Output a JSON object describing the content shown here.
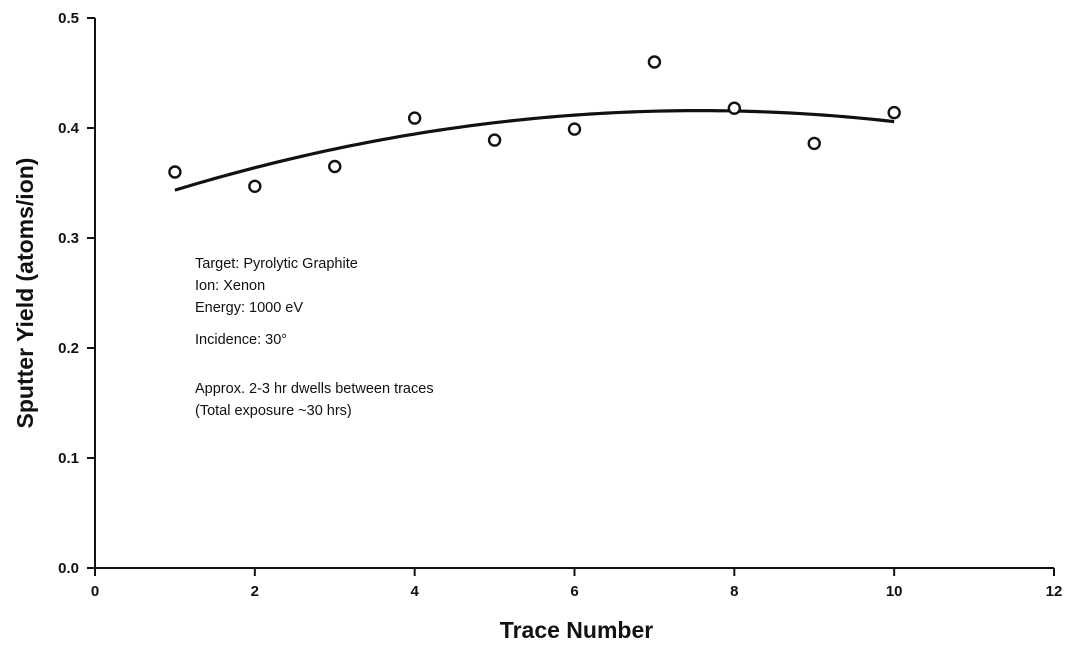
{
  "chart_data": {
    "type": "scatter",
    "xlabel": "Trace Number",
    "ylabel": "Sputter Yield (atoms/ion)",
    "xlim": [
      0,
      12
    ],
    "ylim": [
      0.0,
      0.5
    ],
    "x_ticks": [
      0,
      2,
      4,
      6,
      8,
      10,
      12
    ],
    "y_ticks": [
      "0.0",
      "0.1",
      "0.2",
      "0.3",
      "0.4",
      "0.5"
    ],
    "grid": false,
    "series": [
      {
        "marker": "open-circle",
        "x": [
          1,
          2,
          3,
          4,
          5,
          6,
          7,
          8,
          9,
          10
        ],
        "y": [
          0.36,
          0.347,
          0.365,
          0.409,
          0.389,
          0.399,
          0.46,
          0.418,
          0.386,
          0.414
        ]
      },
      {
        "style": "line",
        "fit": "quadratic",
        "x_range": [
          1,
          10
        ],
        "coefficients": [
          0.3198,
          0.0254,
          -0.00168
        ]
      }
    ],
    "annotations": [
      "Target:  Pyrolytic Graphite",
      "Ion:  Xenon",
      "Energy:  1000 eV",
      "Incidence:  30°",
      "Approx. 2-3 hr dwells between traces",
      "(Total exposure ~30 hrs)"
    ]
  }
}
